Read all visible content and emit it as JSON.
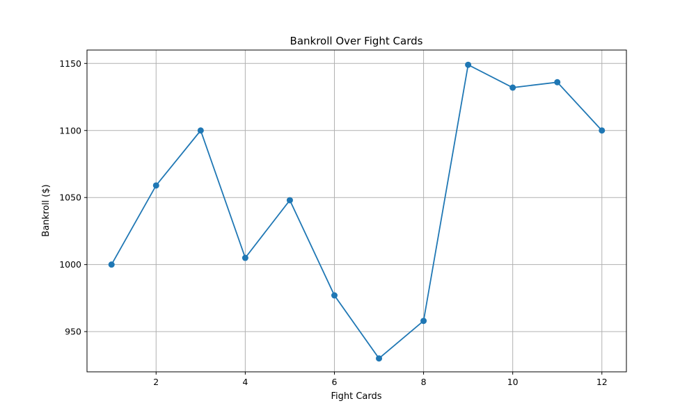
{
  "chart_data": {
    "type": "line",
    "title": "Bankroll Over Fight Cards",
    "xlabel": "Fight Cards",
    "ylabel": "Bankroll ($)",
    "x": [
      1,
      2,
      3,
      4,
      5,
      6,
      7,
      8,
      9,
      10,
      11,
      12
    ],
    "y": [
      1000,
      1059,
      1100,
      1005,
      1048,
      977,
      930,
      958,
      1149,
      1132,
      1136,
      1100
    ],
    "xlim": [
      0.45,
      12.55
    ],
    "ylim": [
      920,
      1160
    ],
    "xticks": [
      2,
      4,
      6,
      8,
      10,
      12
    ],
    "xtick_labels": [
      "2",
      "4",
      "6",
      "8",
      "10",
      "12"
    ],
    "yticks": [
      950,
      1000,
      1050,
      1100,
      1150
    ],
    "ytick_labels": [
      "950",
      "1000",
      "1050",
      "1100",
      "1150"
    ],
    "grid": true,
    "line_color": "#1f77b4",
    "marker": "circle"
  }
}
